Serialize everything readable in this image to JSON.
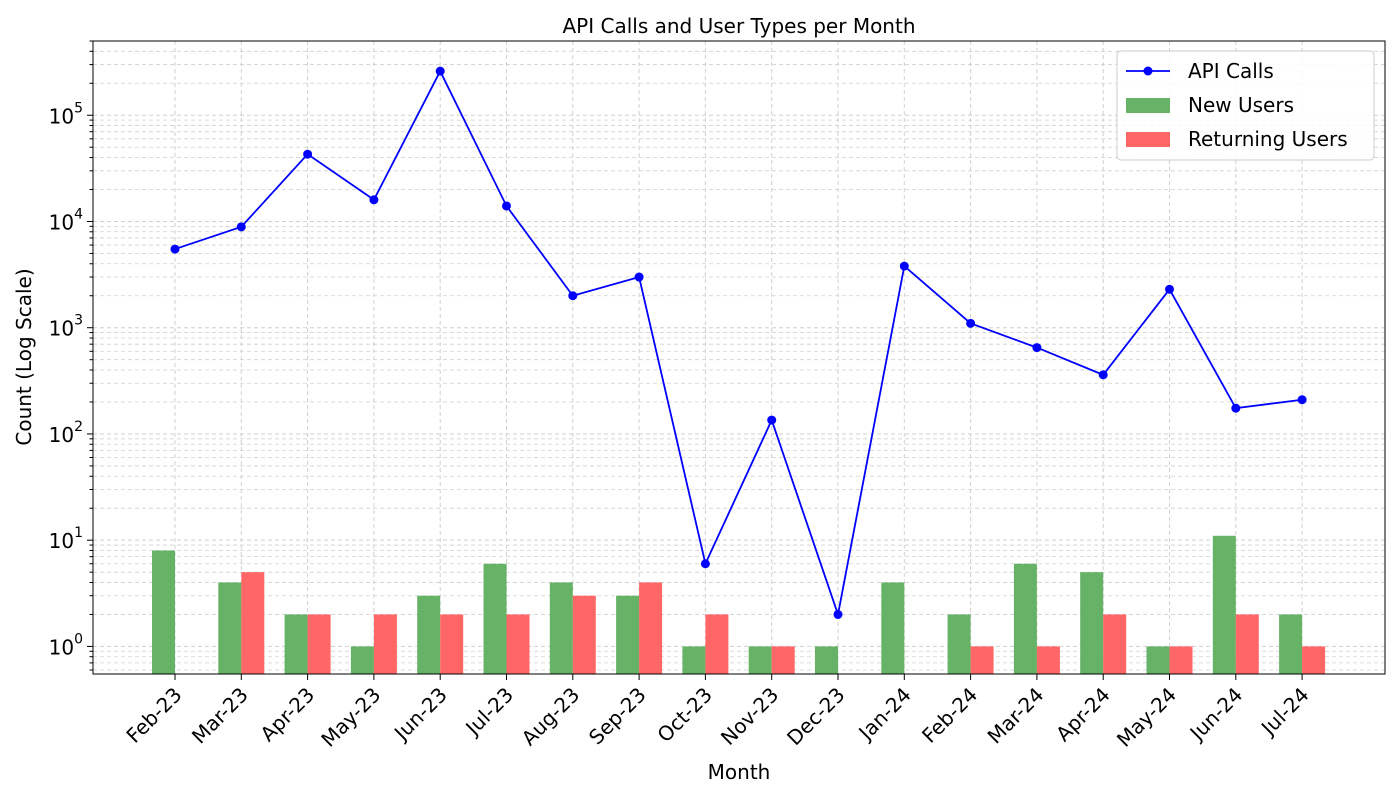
{
  "chart_data": {
    "type": "bar+line",
    "title": "API Calls and User Types per Month",
    "xlabel": "Month",
    "ylabel": "Count (Log Scale)",
    "yscale": "log",
    "ylim": [
      0.55,
      500000
    ],
    "yticks": [
      {
        "value": 1,
        "base": "10",
        "exp": "0"
      },
      {
        "value": 10,
        "base": "10",
        "exp": "1"
      },
      {
        "value": 100,
        "base": "10",
        "exp": "2"
      },
      {
        "value": 1000,
        "base": "10",
        "exp": "3"
      },
      {
        "value": 10000,
        "base": "10",
        "exp": "4"
      },
      {
        "value": 100000,
        "base": "10",
        "exp": "5"
      }
    ],
    "grid": true,
    "legend_position": "top-right",
    "categories": [
      "Feb-23",
      "Mar-23",
      "Apr-23",
      "May-23",
      "Jun-23",
      "Jul-23",
      "Aug-23",
      "Sep-23",
      "Oct-23",
      "Nov-23",
      "Dec-23",
      "Jan-24",
      "Feb-24",
      "Mar-24",
      "Apr-24",
      "May-24",
      "Jun-24",
      "Jul-24"
    ],
    "series": [
      {
        "name": "API Calls",
        "kind": "line",
        "color": "#0000ff",
        "values": [
          5500,
          8900,
          43000,
          16000,
          260000,
          14000,
          2000,
          3000,
          6,
          135,
          2,
          3800,
          1100,
          650,
          360,
          2300,
          175,
          210
        ]
      },
      {
        "name": "New Users",
        "kind": "bar",
        "color": "#66b266",
        "values": [
          8,
          4,
          2,
          1,
          3,
          6,
          4,
          3,
          1,
          1,
          1,
          4,
          2,
          6,
          5,
          1,
          11,
          2
        ]
      },
      {
        "name": "Returning Users",
        "kind": "bar",
        "color": "#ff6666",
        "values": [
          0,
          5,
          2,
          2,
          2,
          2,
          3,
          4,
          2,
          1,
          0,
          0,
          1,
          1,
          2,
          1,
          2,
          1
        ]
      }
    ]
  }
}
